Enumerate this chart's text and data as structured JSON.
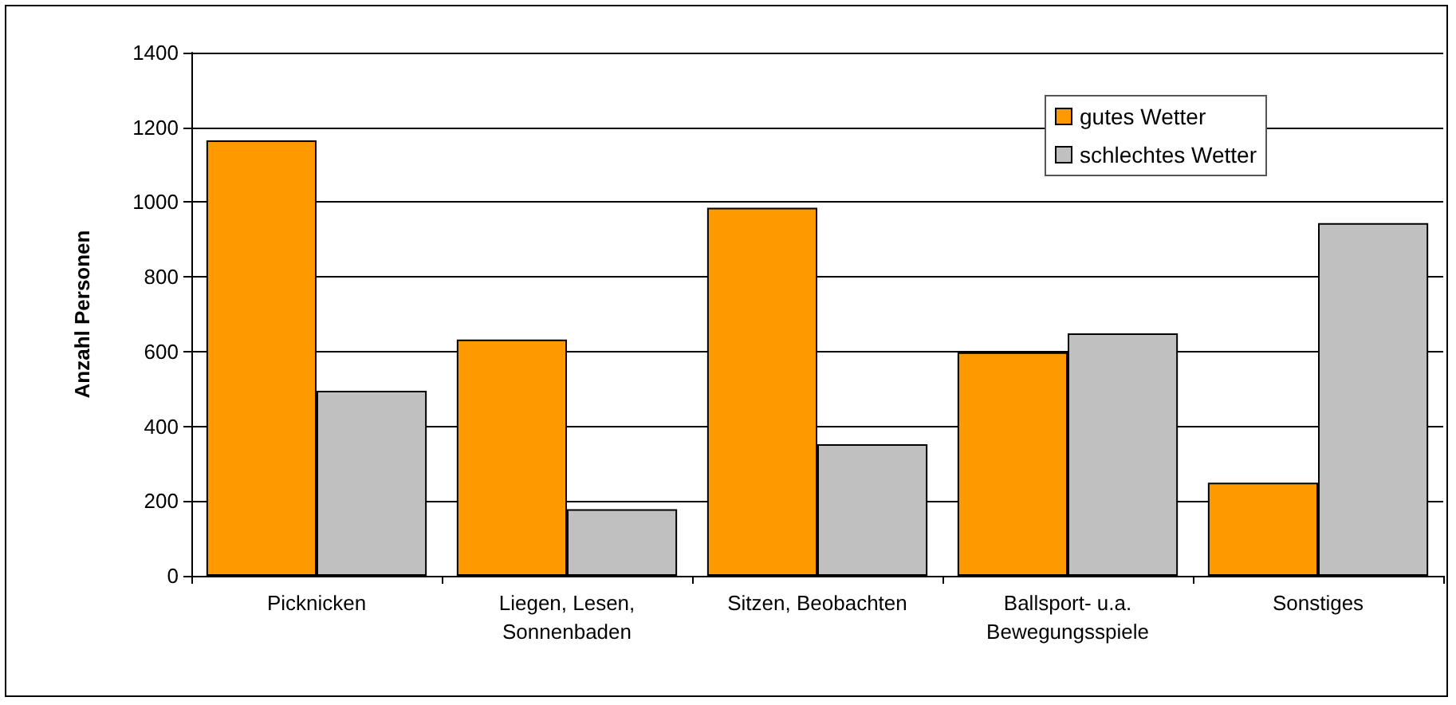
{
  "chart_data": {
    "type": "bar",
    "ylabel": "Anzahl Personen",
    "categories": [
      "Picknicken",
      "Liegen, Lesen,\nSonnenbaden",
      "Sitzen, Beobachten",
      "Ballsport- u.a.\nBewegungsspiele",
      "Sonstiges"
    ],
    "series": [
      {
        "name": "gutes Wetter",
        "color": "#ff9900",
        "values": [
          1165,
          632,
          985,
          598,
          249
        ]
      },
      {
        "name": "schlechtes Wetter",
        "color": "#c0c0c0",
        "values": [
          495,
          178,
          352,
          649,
          944
        ]
      }
    ],
    "ylim": [
      0,
      1400
    ],
    "yticks": [
      0,
      200,
      400,
      600,
      800,
      1000,
      1200,
      1400
    ],
    "grid": "y",
    "legend": "top right"
  }
}
